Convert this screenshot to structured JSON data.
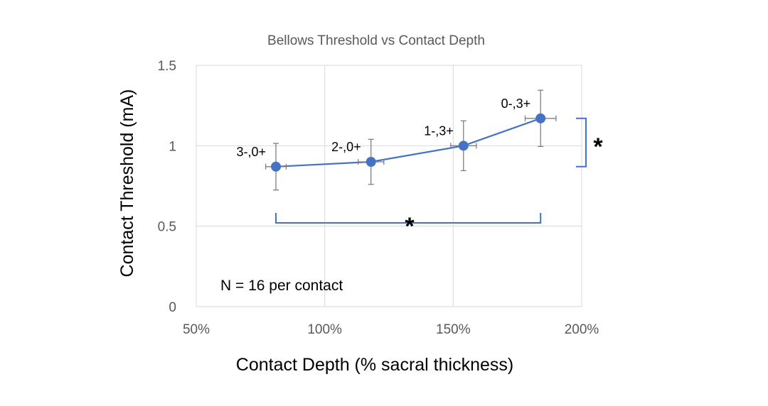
{
  "chart_data": {
    "type": "scatter",
    "title": "Bellows Threshold vs Contact Depth",
    "xlabel": "Contact Depth (% sacral thickness)",
    "ylabel": "Contact Threshold (mA)",
    "xlim": [
      50,
      200
    ],
    "ylim": [
      0,
      1.5
    ],
    "x_ticks": [
      50,
      100,
      150,
      200
    ],
    "x_tick_labels": [
      "50%",
      "100%",
      "150%",
      "200%"
    ],
    "y_ticks": [
      0,
      0.5,
      1,
      1.5
    ],
    "y_tick_labels": [
      "0",
      "0.5",
      "1",
      "1.5"
    ],
    "grid": true,
    "legend": "none",
    "series": [
      {
        "x": [
          81,
          118,
          154,
          184
        ],
        "y": [
          0.87,
          0.9,
          1.0,
          1.17
        ],
        "y_err": [
          0.145,
          0.14,
          0.155,
          0.175
        ],
        "x_err": [
          4,
          5,
          5,
          6
        ],
        "point_labels": [
          "3-,0+",
          "2-,0+",
          "1-,3+",
          "0-,3+"
        ],
        "color": "#4472c4",
        "error_color": "#7f7f7f"
      }
    ],
    "annotations": {
      "note": "N = 16 per contact",
      "significance_marker": "*",
      "horizontal_bracket": {
        "x_from": 81,
        "x_to": 184,
        "y": 0.6
      },
      "vertical_bracket": {
        "y_from": 0.87,
        "y_to": 1.17
      }
    },
    "grid_color": "#d9d9d9",
    "axis_color": "#d9d9d9",
    "bracket_color": "#4472c4"
  }
}
